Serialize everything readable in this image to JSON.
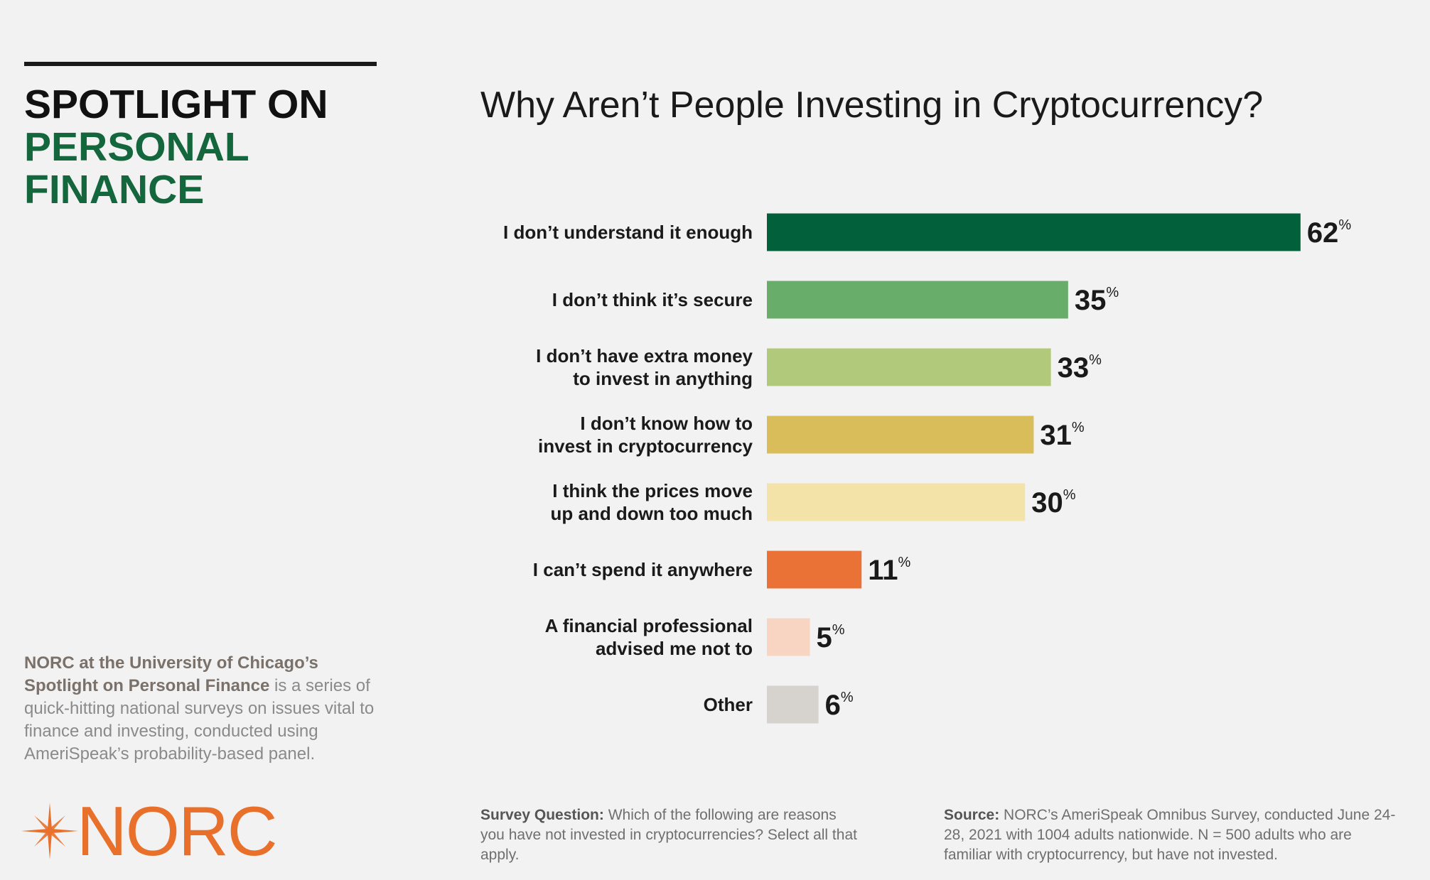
{
  "sidebar": {
    "title_line1": "SPOTLIGHT ON",
    "title_line2": "PERSONAL",
    "title_line3": "FINANCE",
    "blurb_strong": "NORC at the University of Chicago’s Spotlight on Personal Finance",
    "blurb_rest": " is a series of quick-hitting national surveys on issues vital to finance and investing, conducted using AmeriSpeak’s probability-based panel.",
    "logo_text": "NORC"
  },
  "footer": {
    "question_label": "Survey Question:",
    "question_text": " Which of the following are reasons you have not invested in cryptocurrencies?  Select all that apply.",
    "source_label": "Source:",
    "source_text": " NORC’s AmeriSpeak Omnibus Survey, conducted June 24-28, 2021 with 1004 adults nationwide. N = 500 adults who are familiar with cryptocurrency, but have not invested."
  },
  "colors": {
    "norc_orange": "#e8702a",
    "brand_green": "#14673d"
  },
  "chart_data": {
    "type": "bar",
    "orientation": "horizontal",
    "title": "Why Aren’t People Investing in Cryptocurrency?",
    "xlabel": "",
    "ylabel": "",
    "value_suffix": "%",
    "xlim": [
      0,
      70
    ],
    "grid": false,
    "legend": "none",
    "categories": [
      [
        "I don’t understand it enough"
      ],
      [
        "I don’t think it’s secure"
      ],
      [
        "I don’t have extra money",
        "to invest in anything"
      ],
      [
        "I don’t know how to",
        "invest in cryptocurrency"
      ],
      [
        "I think the prices move",
        "up and down too much"
      ],
      [
        "I can’t spend it anywhere"
      ],
      [
        "A financial professional",
        "advised me not to"
      ],
      [
        "Other"
      ]
    ],
    "values": [
      62,
      35,
      33,
      31,
      30,
      11,
      5,
      6
    ],
    "bar_colors": [
      "#02613a",
      "#69ad6b",
      "#b1c97b",
      "#d9bd5b",
      "#f3e3a9",
      "#ea7236",
      "#f8d5c3",
      "#d6d3ce"
    ]
  }
}
